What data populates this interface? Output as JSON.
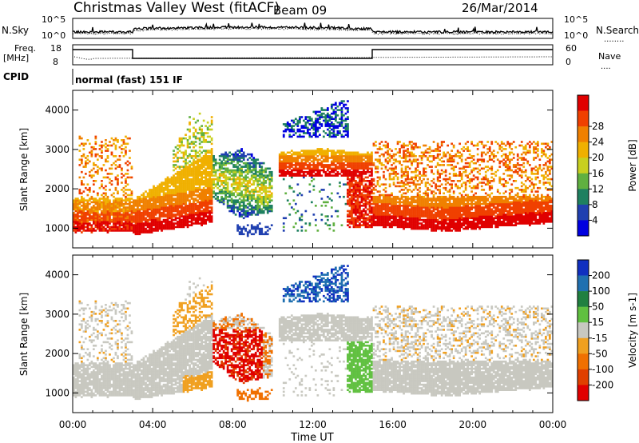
{
  "header": {
    "station": "Christmas Valley West (fitACF)",
    "beam": "Beam 09",
    "date": "26/Mar/2014"
  },
  "panels": {
    "nsky_label": "N.Sky",
    "nsearch_label": "N.Search",
    "nsearch_line": "........",
    "nsky_ticks": [
      "10^5",
      "10^0"
    ],
    "freq_label": "Freq.",
    "freq_unit": "[MHz]",
    "freq_ticks": [
      "18",
      "8"
    ],
    "nave_label": "Nave",
    "nave_line": "....",
    "nave_ticks": [
      "60",
      "0"
    ],
    "cpid_label": "CPID",
    "cpid_text": "normal (fast) 151 IF"
  },
  "colors": {
    "power": [
      "#0000e0",
      "#2040b0",
      "#1e8060",
      "#60b040",
      "#c8d020",
      "#f0b000",
      "#f08000",
      "#f04000",
      "#e00000"
    ],
    "velocity": [
      "#1030c0",
      "#2070b0",
      "#208040",
      "#60c040",
      "#c8c8c0",
      "#f0a020",
      "#f07000",
      "#e04000",
      "#e00000"
    ]
  },
  "chart_data": [
    {
      "type": "heatmap",
      "title": "Power",
      "ylabel": "Slant Range [km]",
      "xlabel": "Time UT",
      "x_ticks": [
        "00:00",
        "04:00",
        "08:00",
        "12:00",
        "16:00",
        "20:00",
        "00:00"
      ],
      "y_ticks": [
        1000,
        2000,
        3000,
        4000
      ],
      "ylim": [
        500,
        4500
      ],
      "xlim_hours": [
        0,
        24
      ],
      "colorbar": {
        "label": "Power [dB]",
        "ticks": [
          4,
          8,
          12,
          16,
          20,
          24,
          28
        ]
      }
    },
    {
      "type": "heatmap",
      "title": "Velocity",
      "ylabel": "Slant Range [km]",
      "xlabel": "Time UT",
      "x_ticks": [
        "00:00",
        "04:00",
        "08:00",
        "12:00",
        "16:00",
        "20:00",
        "00:00"
      ],
      "y_ticks": [
        1000,
        2000,
        3000,
        4000
      ],
      "ylim": [
        500,
        4500
      ],
      "xlim_hours": [
        0,
        24
      ],
      "colorbar": {
        "label": "Velocity [m s-1]",
        "ticks": [
          200,
          100,
          50,
          15,
          -15,
          -50,
          -100,
          -200
        ]
      }
    }
  ]
}
